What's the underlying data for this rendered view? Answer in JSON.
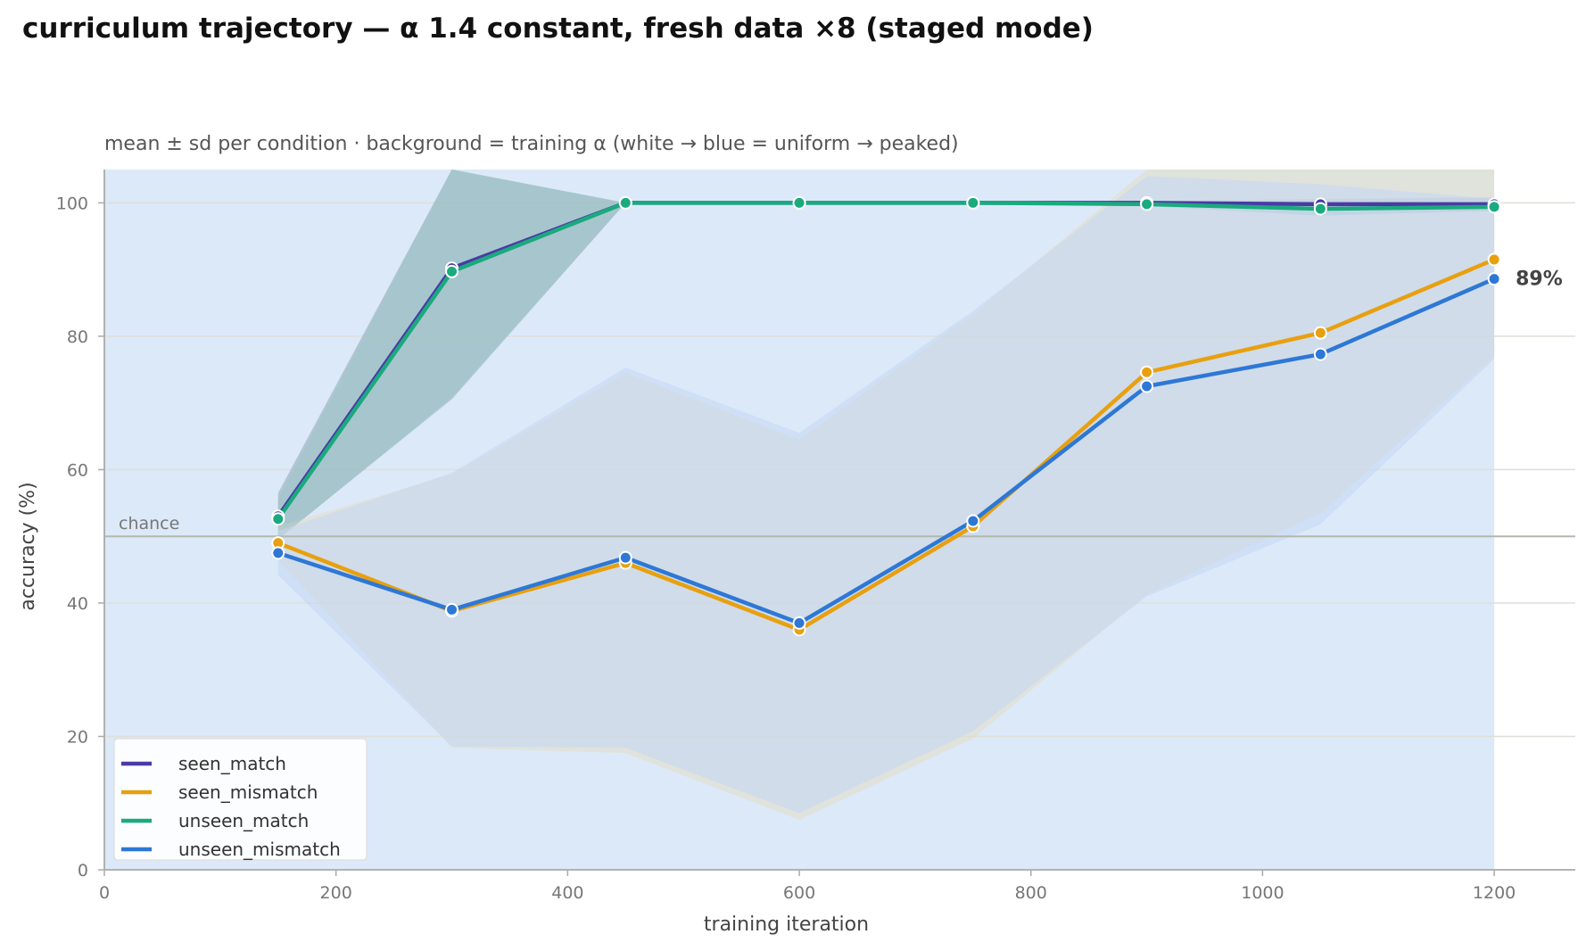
{
  "chart_data": {
    "type": "line",
    "title": "curriculum trajectory — α 1.4 constant, fresh data ×8 (staged mode)",
    "subtitle": "mean ± sd per condition · background = training α (white → blue = uniform → peaked)",
    "xlabel": "training iteration",
    "ylabel": "accuracy (%)",
    "xlim": [
      0,
      1270
    ],
    "ylim": [
      0,
      105
    ],
    "x_ticks": [
      0,
      200,
      400,
      600,
      800,
      1000,
      1200
    ],
    "y_ticks": [
      0,
      20,
      40,
      60,
      80,
      100
    ],
    "grid": "horizontal",
    "legend_position": "bottom-left",
    "background_alpha_band": {
      "from": 0,
      "to": 1200,
      "color": "#dce9f9"
    },
    "x": [
      150,
      300,
      450,
      600,
      750,
      900,
      1050,
      1200
    ],
    "reference_line": {
      "y": 50,
      "label": "chance",
      "color": "#b3b8ad"
    },
    "end_annotation": {
      "text": "89%",
      "x": 1200,
      "y": 88.6
    },
    "series": [
      {
        "name": "seen_match",
        "color": "#4a3aa6",
        "band_color": "#8fa8b8",
        "values": [
          53,
          90.2,
          100,
          100,
          100,
          100,
          99.8,
          99.8
        ],
        "sd": [
          3.5,
          19.5,
          0,
          0,
          0,
          0.2,
          0.8,
          1.0
        ]
      },
      {
        "name": "seen_mismatch",
        "color": "#e8a010",
        "band_color": "#e3dcc4",
        "values": [
          49,
          38.8,
          46,
          36,
          51.5,
          74.6,
          80.5,
          91.5
        ],
        "sd": [
          2.5,
          20.5,
          28.5,
          28.5,
          31.8,
          33.3,
          27.0,
          14.5
        ]
      },
      {
        "name": "unseen_match",
        "color": "#1aaa7e",
        "band_color": "#9fc4c6",
        "values": [
          52.6,
          89.7,
          100,
          100,
          100,
          99.8,
          99.1,
          99.4
        ],
        "sd": [
          3.0,
          19.2,
          0,
          0,
          0,
          0.3,
          1.0,
          0.6
        ]
      },
      {
        "name": "unseen_mismatch",
        "color": "#2d78d6",
        "band_color": "#c3d7f4",
        "values": [
          47.5,
          39,
          46.8,
          37,
          52.3,
          72.5,
          77.3,
          88.6
        ],
        "sd": [
          3.3,
          20.5,
          28.5,
          28.5,
          31.5,
          31.5,
          25.5,
          12.0
        ]
      }
    ]
  }
}
